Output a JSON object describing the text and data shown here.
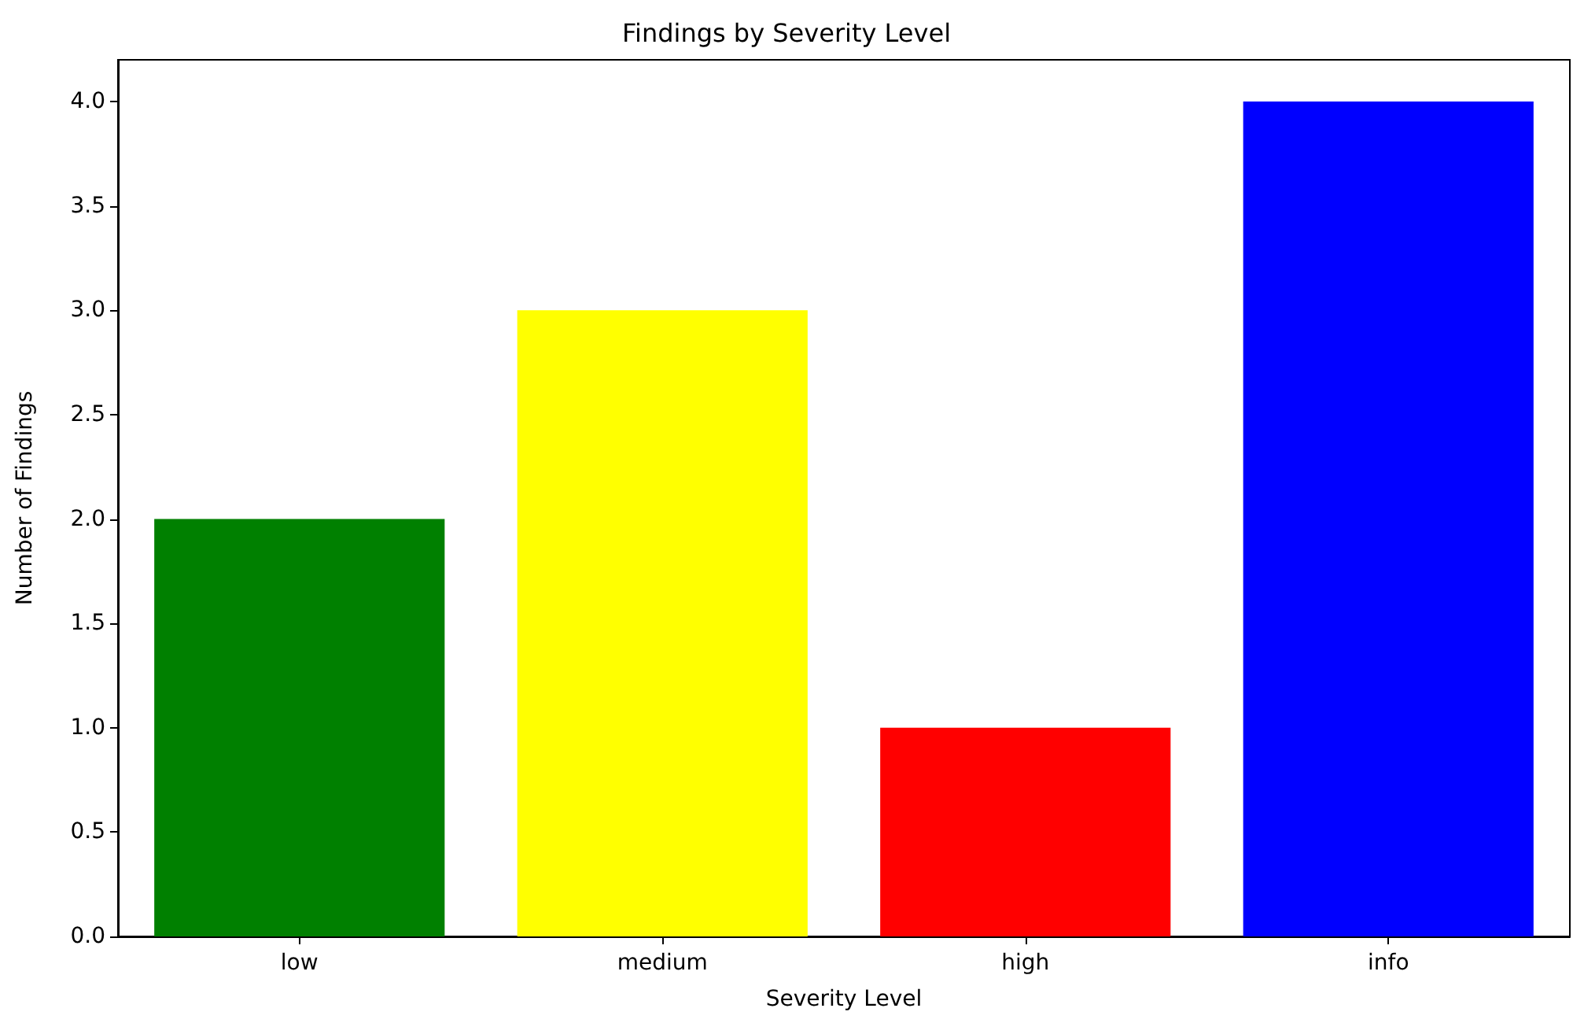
{
  "chart_data": {
    "type": "bar",
    "title": "Findings by Severity Level",
    "xlabel": "Severity Level",
    "ylabel": "Number of Findings",
    "categories": [
      "low",
      "medium",
      "high",
      "info"
    ],
    "values": [
      2,
      3,
      1,
      4
    ],
    "colors": [
      "#008000",
      "#ffff00",
      "#ff0000",
      "#0000ff"
    ],
    "ylim": [
      0,
      4.2
    ],
    "yticks": [
      {
        "value": 0,
        "label": "0.0"
      },
      {
        "value": 0.5,
        "label": "0.5"
      },
      {
        "value": 1,
        "label": "1.0"
      },
      {
        "value": 1.5,
        "label": "1.5"
      },
      {
        "value": 2,
        "label": "2.0"
      },
      {
        "value": 2.5,
        "label": "2.5"
      },
      {
        "value": 3,
        "label": "3.0"
      },
      {
        "value": 3.5,
        "label": "3.5"
      },
      {
        "value": 4,
        "label": "4.0"
      }
    ],
    "grid": false
  }
}
